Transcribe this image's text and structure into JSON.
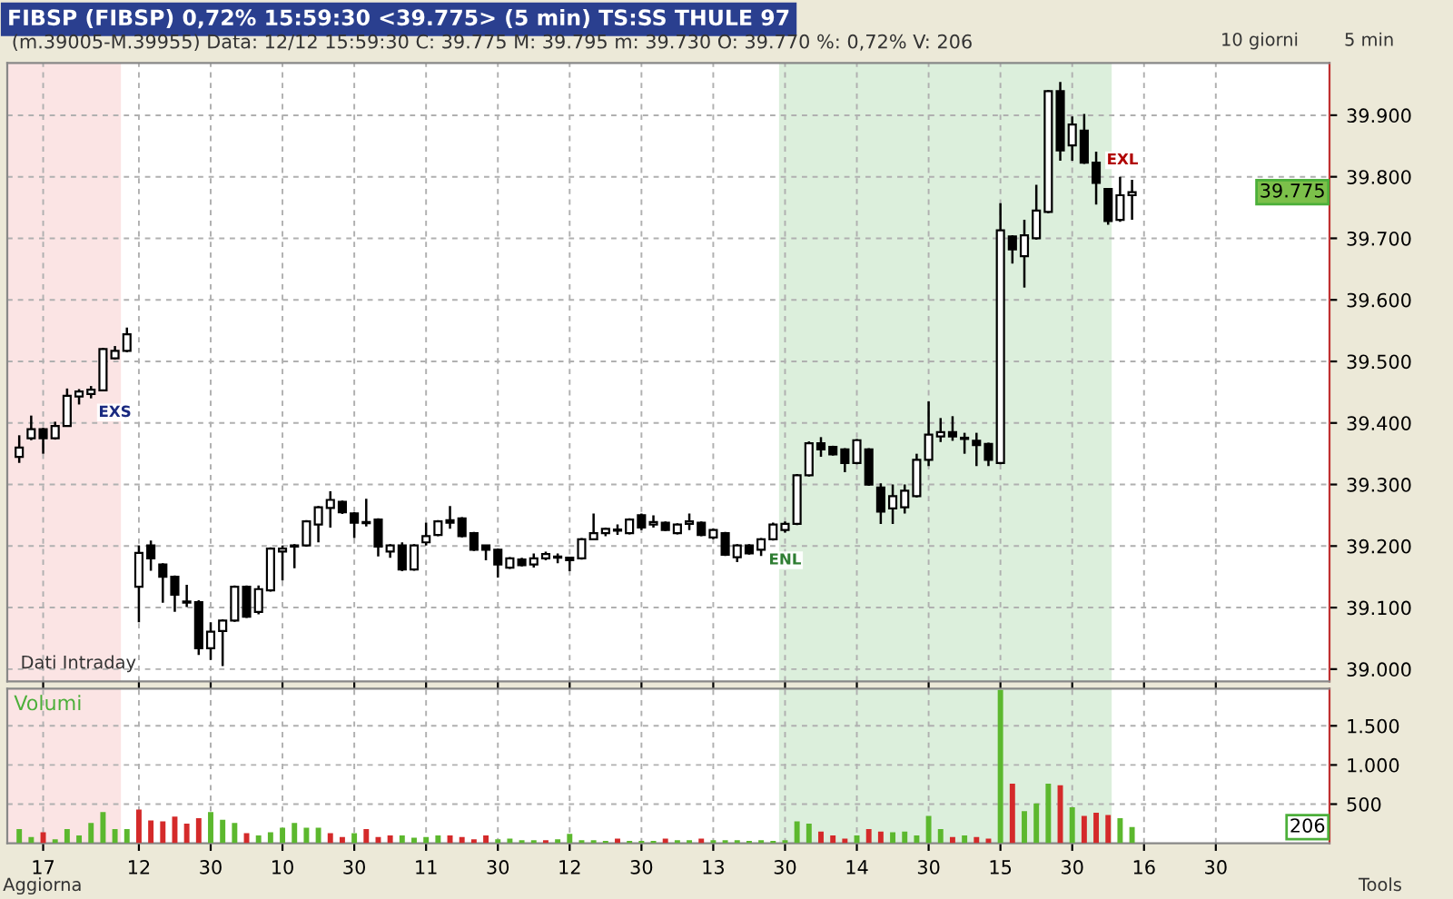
{
  "chart_data": [
    {
      "type": "candlestick",
      "title": "FIBSP (FIBSP) 0,72% 15:59:30 <39.775> (5 min) TS:SS THULE 97",
      "subtitle": "(m.39005-M.39955) Data: 12/12 15:59:30 C: 39.775 M: 39.795 m: 39.730 O: 39.770 %: 0,72% V: 206",
      "categories": [
        null,
        null,
        "17",
        null,
        null,
        null,
        null,
        null,
        null,
        null,
        "12",
        null,
        null,
        null,
        null,
        null,
        "30",
        null,
        null,
        null,
        null,
        null,
        "10",
        null,
        null,
        null,
        null,
        null,
        "30",
        null,
        null,
        null,
        null,
        null,
        "11",
        null,
        null,
        null,
        null,
        null,
        "30",
        null,
        null,
        null,
        null,
        null,
        "12",
        null,
        null,
        null,
        null,
        null,
        "30",
        null,
        null,
        null,
        null,
        null,
        "13",
        null,
        null,
        null,
        null,
        null,
        "30",
        null,
        null,
        null,
        null,
        null,
        "14",
        null,
        null,
        null,
        null,
        null,
        "30",
        null,
        null,
        null,
        null,
        null,
        "15",
        null,
        null,
        null,
        null,
        null,
        "30",
        null,
        null,
        null,
        null,
        null,
        "16",
        null,
        null,
        null,
        null,
        null,
        "30",
        null,
        null,
        null,
        null,
        null,
        null,
        null,
        null,
        null
      ],
      "ohlc": [
        [
          39345,
          39380,
          39335,
          39360
        ],
        [
          39375,
          39412,
          39372,
          39390
        ],
        [
          39390,
          39392,
          39350,
          39375
        ],
        [
          39375,
          39402,
          39373,
          39395
        ],
        [
          39395,
          39456,
          39395,
          39444
        ],
        [
          39443,
          39455,
          39430,
          39451
        ],
        [
          39447,
          39460,
          39440,
          39454
        ],
        [
          39453,
          39522,
          39452,
          39520
        ],
        [
          39505,
          39525,
          39503,
          39517
        ],
        [
          39517,
          39555,
          39515,
          39544
        ],
        [
          39134,
          39201,
          39076,
          39189
        ],
        [
          39201,
          39209,
          39160,
          39180
        ],
        [
          39170,
          39172,
          39108,
          39150
        ],
        [
          39150,
          39152,
          39093,
          39121
        ],
        [
          39110,
          39137,
          39101,
          39108
        ],
        [
          39109,
          39112,
          39023,
          39034
        ],
        [
          39034,
          39076,
          39015,
          39061
        ],
        [
          39062,
          39081,
          39005,
          39079
        ],
        [
          39079,
          39136,
          39077,
          39134
        ],
        [
          39134,
          39136,
          39083,
          39085
        ],
        [
          39093,
          39136,
          39089,
          39130
        ],
        [
          39128,
          39198,
          39126,
          39196
        ],
        [
          39191,
          39201,
          39144,
          39196
        ],
        [
          39199,
          39203,
          39164,
          39201
        ],
        [
          39201,
          39242,
          39199,
          39240
        ],
        [
          39235,
          39265,
          39206,
          39263
        ],
        [
          39262,
          39289,
          39230,
          39275
        ],
        [
          39272,
          39274,
          39252,
          39255
        ],
        [
          39253,
          39255,
          39213,
          39238
        ],
        [
          39239,
          39277,
          39232,
          39237
        ],
        [
          39243,
          39245,
          39183,
          39199
        ],
        [
          39191,
          39203,
          39181,
          39201
        ],
        [
          39201,
          39206,
          39159,
          39162
        ],
        [
          39162,
          39203,
          39160,
          39201
        ],
        [
          39206,
          39238,
          39201,
          39216
        ],
        [
          39218,
          39242,
          39216,
          39240
        ],
        [
          39242,
          39265,
          39228,
          39238
        ],
        [
          39245,
          39247,
          39214,
          39216
        ],
        [
          39221,
          39223,
          39192,
          39194
        ],
        [
          39201,
          39202,
          39177,
          39194
        ],
        [
          39194,
          39196,
          39149,
          39170
        ],
        [
          39165,
          39182,
          39163,
          39180
        ],
        [
          39178,
          39181,
          39167,
          39169
        ],
        [
          39170,
          39188,
          39165,
          39180
        ],
        [
          39180,
          39191,
          39177,
          39187
        ],
        [
          39183,
          39188,
          39172,
          39181
        ],
        [
          39181,
          39182,
          39159,
          39177
        ],
        [
          39180,
          39213,
          39178,
          39211
        ],
        [
          39211,
          39253,
          39210,
          39221
        ],
        [
          39221,
          39230,
          39216,
          39228
        ],
        [
          39225,
          39235,
          39218,
          39227
        ],
        [
          39221,
          39245,
          39219,
          39243
        ],
        [
          39250,
          39253,
          39226,
          39230
        ],
        [
          39235,
          39250,
          39230,
          39239
        ],
        [
          39238,
          39240,
          39224,
          39226
        ],
        [
          39221,
          39237,
          39219,
          39235
        ],
        [
          39236,
          39253,
          39226,
          39240
        ],
        [
          39238,
          39240,
          39216,
          39218
        ],
        [
          39214,
          39228,
          39211,
          39226
        ],
        [
          39221,
          39223,
          39184,
          39186
        ],
        [
          39182,
          39203,
          39174,
          39201
        ],
        [
          39201,
          39203,
          39186,
          39188
        ],
        [
          39194,
          39213,
          39184,
          39211
        ],
        [
          39211,
          39238,
          39209,
          39235
        ],
        [
          39226,
          39240,
          39222,
          39236
        ],
        [
          39236,
          39317,
          39234,
          39315
        ],
        [
          39315,
          39370,
          39313,
          39367
        ],
        [
          39367,
          39377,
          39345,
          39357
        ],
        [
          39361,
          39363,
          39347,
          39349
        ],
        [
          39357,
          39359,
          39320,
          39335
        ],
        [
          39335,
          39374,
          39333,
          39372
        ],
        [
          39357,
          39359,
          39298,
          39300
        ],
        [
          39295,
          39302,
          39236,
          39256
        ],
        [
          39261,
          39300,
          39236,
          39281
        ],
        [
          39263,
          39300,
          39253,
          39290
        ],
        [
          39281,
          39350,
          39279,
          39340
        ],
        [
          39340,
          39435,
          39330,
          39381
        ],
        [
          39378,
          39408,
          39369,
          39385
        ],
        [
          39385,
          39411,
          39371,
          39378
        ],
        [
          39376,
          39384,
          39350,
          39374
        ],
        [
          39371,
          39384,
          39330,
          39364
        ],
        [
          39366,
          39368,
          39330,
          39340
        ],
        [
          39335,
          39757,
          39333,
          39713
        ],
        [
          39703,
          39705,
          39659,
          39682
        ],
        [
          39671,
          39730,
          39620,
          39705
        ],
        [
          39700,
          39787,
          39698,
          39745
        ],
        [
          39743,
          39941,
          39741,
          39939
        ],
        [
          39939,
          39954,
          39826,
          39843
        ],
        [
          39851,
          39898,
          39826,
          39885
        ],
        [
          39875,
          39902,
          39821,
          39823
        ],
        [
          39823,
          39841,
          39755,
          39790
        ],
        [
          39780,
          39782,
          39722,
          39728
        ],
        [
          39730,
          39800,
          39727,
          39770
        ],
        [
          39770,
          39795,
          39730,
          39775
        ],
        null,
        null,
        null,
        null,
        null,
        null,
        null,
        null,
        null,
        null,
        null,
        null,
        null,
        null,
        null,
        null
      ],
      "ylim": [
        38980,
        39985
      ],
      "yticks": [
        {
          "value": 39000,
          "label": "39.000"
        },
        {
          "value": 39100,
          "label": "39.100"
        },
        {
          "value": 39200,
          "label": "39.200"
        },
        {
          "value": 39300,
          "label": "39.300"
        },
        {
          "value": 39400,
          "label": "39.400"
        },
        {
          "value": 39500,
          "label": "39.500"
        },
        {
          "value": 39600,
          "label": "39.600"
        },
        {
          "value": 39700,
          "label": "39.700"
        },
        {
          "value": 39800,
          "label": "39.800"
        },
        {
          "value": 39900,
          "label": "39.900"
        }
      ],
      "tick_labels": "y",
      "grid": true,
      "annotations": [
        {
          "text": "39.775",
          "y": 39775
        },
        "EXS",
        "ENL",
        "EXL",
        "Dati Intraday",
        "10 giorni",
        "5 min"
      ]
    },
    {
      "type": "bar",
      "title": "Volumi",
      "categories": [
        null,
        null,
        "17",
        null,
        null,
        null,
        null,
        null,
        null,
        null,
        "12",
        null,
        null,
        null,
        null,
        null,
        "30",
        null,
        null,
        null,
        null,
        null,
        "10",
        null,
        null,
        null,
        null,
        null,
        "30",
        null,
        null,
        null,
        null,
        null,
        "11",
        null,
        null,
        null,
        null,
        null,
        "30",
        null,
        null,
        null,
        null,
        null,
        "12",
        null,
        null,
        null,
        null,
        null,
        "30",
        null,
        null,
        null,
        null,
        null,
        "13",
        null,
        null,
        null,
        null,
        null,
        "30",
        null,
        null,
        null,
        null,
        null,
        "14",
        null,
        null,
        null,
        null,
        null,
        "30",
        null,
        null,
        null,
        null,
        null,
        "15",
        null,
        null,
        null,
        null,
        null,
        "30",
        null,
        null,
        null,
        null,
        null,
        "16",
        null,
        null,
        null,
        null,
        null,
        "30",
        null,
        null,
        null,
        null,
        null,
        null,
        null,
        null,
        null
      ],
      "values": [
        180,
        80,
        140,
        50,
        180,
        100,
        260,
        400,
        180,
        180,
        430,
        290,
        280,
        340,
        250,
        320,
        400,
        300,
        260,
        130,
        100,
        140,
        200,
        260,
        200,
        200,
        130,
        80,
        130,
        180,
        80,
        100,
        100,
        70,
        80,
        100,
        100,
        80,
        50,
        100,
        50,
        60,
        40,
        40,
        40,
        50,
        120,
        40,
        40,
        30,
        60,
        30,
        30,
        30,
        60,
        40,
        40,
        60,
        40,
        40,
        40,
        30,
        40,
        30,
        40,
        280,
        250,
        150,
        100,
        60,
        100,
        180,
        150,
        140,
        150,
        100,
        350,
        180,
        80,
        100,
        80,
        60,
        1960,
        760,
        410,
        510,
        760,
        740,
        460,
        350,
        390,
        360,
        320,
        206,
        null,
        null,
        null,
        null,
        null,
        null,
        null,
        null,
        null,
        null,
        null,
        null,
        null,
        null,
        null,
        null
      ],
      "colors": [
        "#5cb82e",
        "#5cb82e",
        "#d42a2a",
        "#5cb82e",
        "#5cb82e",
        "#5cb82e",
        "#5cb82e",
        "#5cb82e",
        "#5cb82e",
        "#5cb82e",
        "#d42a2a",
        "#d42a2a",
        "#d42a2a",
        "#d42a2a",
        "#d42a2a",
        "#d42a2a",
        "#5cb82e",
        "#5cb82e",
        "#5cb82e",
        "#d42a2a",
        "#5cb82e",
        "#5cb82e",
        "#5cb82e",
        "#5cb82e",
        "#5cb82e",
        "#5cb82e",
        "#d42a2a",
        "#d42a2a",
        "#5cb82e",
        "#d42a2a",
        "#d42a2a",
        "#d42a2a",
        "#5cb82e",
        "#5cb82e",
        "#5cb82e",
        "#5cb82e",
        "#d42a2a",
        "#d42a2a",
        "#d42a2a",
        "#d42a2a",
        "#5cb82e",
        "#5cb82e",
        "#5cb82e",
        "#5cb82e",
        "#d42a2a",
        "#5cb82e",
        "#5cb82e",
        "#5cb82e",
        "#5cb82e",
        "#5cb82e",
        "#d42a2a",
        "#5cb82e",
        "#5cb82e",
        "#5cb82e",
        "#d42a2a",
        "#5cb82e",
        "#5cb82e",
        "#d42a2a",
        "#5cb82e",
        "#5cb82e",
        "#5cb82e",
        "#5cb82e",
        "#5cb82e",
        "#5cb82e",
        "#5cb82e",
        "#5cb82e",
        "#5cb82e",
        "#d42a2a",
        "#d42a2a",
        "#d42a2a",
        "#5cb82e",
        "#d42a2a",
        "#d42a2a",
        "#5cb82e",
        "#5cb82e",
        "#5cb82e",
        "#5cb82e",
        "#5cb82e",
        "#d42a2a",
        "#5cb82e",
        "#d42a2a",
        "#d42a2a",
        "#5cb82e",
        "#d42a2a",
        "#5cb82e",
        "#5cb82e",
        "#5cb82e",
        "#d42a2a",
        "#5cb82e",
        "#d42a2a",
        "#d42a2a",
        "#d42a2a",
        "#5cb82e",
        "#5cb82e",
        null,
        null,
        null,
        null,
        null,
        null,
        null,
        null,
        null,
        null,
        null,
        null,
        null,
        null,
        null,
        null
      ],
      "ylim": [
        0,
        1975
      ],
      "yticks": [
        500,
        {
          "value": 1000,
          "label": "1.000"
        },
        {
          "value": 1500,
          "label": "1.500"
        }
      ],
      "grid": true,
      "annotations": [
        {
          "text": "206",
          "y": 206
        },
        "Aggiorna",
        "Tools"
      ]
    }
  ]
}
